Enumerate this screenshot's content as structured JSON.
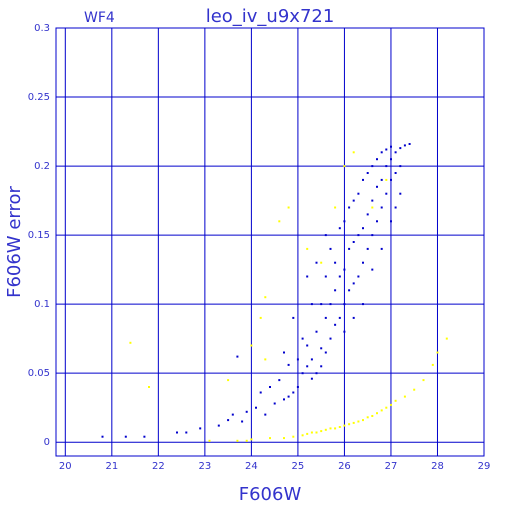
{
  "chart_data": {
    "type": "scatter",
    "title": "leo_iv_u9x721",
    "subtitle": "WF4",
    "xlabel": "F606W",
    "ylabel": "F606W error",
    "xlim": [
      19.8,
      29
    ],
    "ylim": [
      -0.01,
      0.3
    ],
    "xticks": [
      "20",
      "21",
      "22",
      "23",
      "24",
      "25",
      "26",
      "27",
      "28",
      "29"
    ],
    "yticks": [
      "0",
      "0.05",
      "0.1",
      "0.15",
      "0.2",
      "0.25",
      "0.3"
    ],
    "grid": true,
    "colors": {
      "grid": "#0000cc",
      "labels": "#3333cc"
    },
    "series": [
      {
        "color": "#0000cc",
        "points": [
          [
            20.8,
            0.004
          ],
          [
            21.3,
            0.004
          ],
          [
            21.7,
            0.004
          ],
          [
            22.4,
            0.007
          ],
          [
            22.6,
            0.007
          ],
          [
            22.9,
            0.01
          ],
          [
            23.3,
            0.012
          ],
          [
            23.5,
            0.016
          ],
          [
            23.6,
            0.02
          ],
          [
            23.8,
            0.015
          ],
          [
            23.9,
            0.022
          ],
          [
            24.1,
            0.025
          ],
          [
            24.2,
            0.036
          ],
          [
            24.3,
            0.02
          ],
          [
            24.5,
            0.028
          ],
          [
            24.6,
            0.045
          ],
          [
            24.7,
            0.031
          ],
          [
            24.8,
            0.033
          ],
          [
            24.9,
            0.036
          ],
          [
            25.0,
            0.06
          ],
          [
            25.0,
            0.04
          ],
          [
            23.7,
            0.062
          ],
          [
            24.4,
            0.04
          ],
          [
            24.7,
            0.065
          ],
          [
            24.8,
            0.056
          ],
          [
            25.1,
            0.05
          ],
          [
            25.2,
            0.055
          ],
          [
            25.2,
            0.07
          ],
          [
            25.3,
            0.046
          ],
          [
            25.3,
            0.06
          ],
          [
            25.4,
            0.05
          ],
          [
            25.4,
            0.08
          ],
          [
            25.5,
            0.055
          ],
          [
            25.5,
            0.068
          ],
          [
            25.5,
            0.1
          ],
          [
            25.6,
            0.065
          ],
          [
            25.6,
            0.09
          ],
          [
            25.6,
            0.12
          ],
          [
            25.7,
            0.075
          ],
          [
            25.7,
            0.1
          ],
          [
            25.7,
            0.14
          ],
          [
            25.8,
            0.085
          ],
          [
            25.8,
            0.11
          ],
          [
            25.8,
            0.13
          ],
          [
            25.9,
            0.09
          ],
          [
            25.9,
            0.12
          ],
          [
            25.9,
            0.155
          ],
          [
            26.0,
            0.1
          ],
          [
            26.0,
            0.125
          ],
          [
            26.0,
            0.16
          ],
          [
            26.1,
            0.11
          ],
          [
            26.1,
            0.14
          ],
          [
            26.1,
            0.17
          ],
          [
            26.2,
            0.115
          ],
          [
            26.2,
            0.145
          ],
          [
            26.2,
            0.175
          ],
          [
            26.3,
            0.12
          ],
          [
            26.3,
            0.15
          ],
          [
            26.3,
            0.18
          ],
          [
            26.4,
            0.13
          ],
          [
            26.4,
            0.155
          ],
          [
            26.4,
            0.19
          ],
          [
            26.5,
            0.14
          ],
          [
            26.5,
            0.165
          ],
          [
            26.5,
            0.195
          ],
          [
            26.6,
            0.15
          ],
          [
            26.6,
            0.175
          ],
          [
            26.6,
            0.2
          ],
          [
            26.7,
            0.16
          ],
          [
            26.7,
            0.185
          ],
          [
            26.7,
            0.205
          ],
          [
            26.8,
            0.17
          ],
          [
            26.8,
            0.19
          ],
          [
            26.8,
            0.21
          ],
          [
            26.9,
            0.18
          ],
          [
            26.9,
            0.2
          ],
          [
            26.9,
            0.212
          ],
          [
            27.0,
            0.19
          ],
          [
            27.0,
            0.205
          ],
          [
            27.0,
            0.214
          ],
          [
            27.1,
            0.195
          ],
          [
            27.1,
            0.21
          ],
          [
            27.2,
            0.2
          ],
          [
            27.2,
            0.213
          ],
          [
            27.3,
            0.215
          ],
          [
            27.4,
            0.216
          ],
          [
            25.2,
            0.12
          ],
          [
            25.4,
            0.13
          ],
          [
            25.3,
            0.1
          ],
          [
            25.6,
            0.15
          ],
          [
            26.0,
            0.08
          ],
          [
            26.2,
            0.09
          ],
          [
            26.4,
            0.1
          ],
          [
            26.6,
            0.125
          ],
          [
            26.8,
            0.14
          ],
          [
            27.0,
            0.16
          ],
          [
            27.1,
            0.17
          ],
          [
            27.2,
            0.18
          ],
          [
            25.1,
            0.075
          ],
          [
            24.9,
            0.09
          ]
        ]
      },
      {
        "color": "#ffff00",
        "points": [
          [
            21.4,
            0.072
          ],
          [
            21.8,
            0.04
          ],
          [
            23.1,
            0.001
          ],
          [
            23.5,
            0.045
          ],
          [
            23.7,
            0.001
          ],
          [
            23.9,
            0.001
          ],
          [
            24.0,
            0.002
          ],
          [
            24.2,
            0.09
          ],
          [
            24.3,
            0.105
          ],
          [
            24.4,
            0.003
          ],
          [
            24.6,
            0.16
          ],
          [
            24.7,
            0.003
          ],
          [
            24.8,
            0.17
          ],
          [
            24.9,
            0.004
          ],
          [
            25.1,
            0.005
          ],
          [
            25.2,
            0.006
          ],
          [
            25.3,
            0.007
          ],
          [
            25.4,
            0.007
          ],
          [
            25.5,
            0.008
          ],
          [
            25.6,
            0.009
          ],
          [
            25.7,
            0.01
          ],
          [
            25.8,
            0.01
          ],
          [
            25.9,
            0.011
          ],
          [
            26.0,
            0.012
          ],
          [
            26.1,
            0.013
          ],
          [
            26.2,
            0.014
          ],
          [
            26.3,
            0.015
          ],
          [
            26.4,
            0.016
          ],
          [
            26.5,
            0.018
          ],
          [
            26.6,
            0.019
          ],
          [
            26.7,
            0.021
          ],
          [
            26.8,
            0.023
          ],
          [
            26.9,
            0.025
          ],
          [
            27.0,
            0.027
          ],
          [
            27.1,
            0.03
          ],
          [
            27.3,
            0.033
          ],
          [
            27.5,
            0.038
          ],
          [
            27.7,
            0.045
          ],
          [
            27.9,
            0.056
          ],
          [
            28.0,
            0.065
          ],
          [
            28.2,
            0.075
          ],
          [
            26.2,
            0.21
          ],
          [
            26.0,
            0.2
          ],
          [
            25.8,
            0.17
          ],
          [
            25.5,
            0.13
          ],
          [
            25.2,
            0.14
          ],
          [
            24.3,
            0.06
          ],
          [
            24.0,
            0.07
          ],
          [
            26.6,
            0.17
          ],
          [
            26.9,
            0.19
          ]
        ]
      }
    ]
  }
}
